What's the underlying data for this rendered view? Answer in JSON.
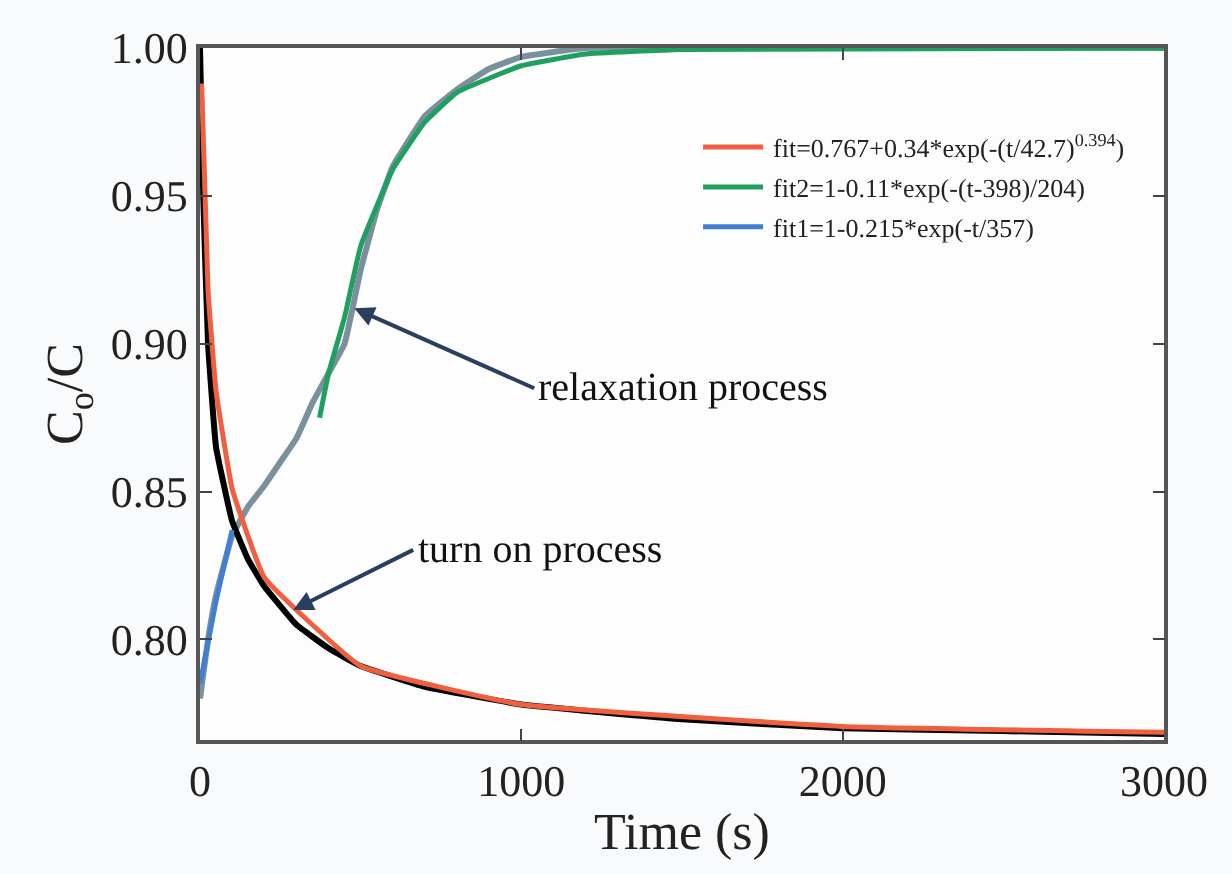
{
  "chart_data": {
    "type": "line",
    "xlabel": "Time (s)",
    "ylabel": "C$_{o}$/C",
    "xlim": [
      0,
      3000
    ],
    "xticks": [
      0,
      1000,
      2000,
      3000
    ],
    "ylim": [
      0.766,
      1.0
    ],
    "yticks": [
      {
        "value": 0.8,
        "label": "0.80"
      },
      {
        "value": 0.85,
        "label": "0.85"
      },
      {
        "value": 0.9,
        "label": "0.90"
      },
      {
        "value": 0.95,
        "label": "0.95"
      },
      {
        "value": 1.0,
        "label": "1.00"
      }
    ],
    "legend": "top right",
    "marker": "none",
    "line_style": "solid",
    "series": [
      {
        "name": "fit=0.767+0.34*exp(-(t/42.7)$^{0.394}$)",
        "color": "#f06040",
        "x": [
          5,
          25,
          50,
          100,
          200,
          500,
          1000,
          2000,
          3000
        ],
        "values": [
          0.988,
          0.918,
          0.884,
          0.851,
          0.821,
          0.791,
          0.778,
          0.7706,
          0.7686
        ]
      },
      {
        "name": "fit2=1-0.11*exp(-(t-398)/204)",
        "color": "#20a060",
        "x": [
          372,
          400,
          450,
          500,
          600,
          700,
          800,
          1000,
          1200,
          1500,
          3000
        ],
        "values": [
          0.875,
          0.89,
          0.909,
          0.933,
          0.959,
          0.975,
          0.985,
          0.994,
          0.998,
          0.9995,
          1.0
        ]
      },
      {
        "name": "fit1=1-0.215*exp(-t/357)",
        "color": "#4080d0",
        "x": [
          0,
          50,
          100
        ],
        "values": [
          0.785,
          0.813,
          0.837
        ]
      },
      {
        "color": "#7a909c",
        "x": [
          0,
          25,
          50,
          100,
          150,
          200,
          250,
          300,
          350,
          400,
          450,
          500,
          550,
          600,
          700,
          800,
          900,
          1000,
          1200,
          3000
        ],
        "values": [
          0.78,
          0.8,
          0.815,
          0.835,
          0.845,
          0.852,
          0.86,
          0.868,
          0.88,
          0.89,
          0.9,
          0.925,
          0.945,
          0.96,
          0.977,
          0.986,
          0.993,
          0.997,
          1.0,
          1.0
        ]
      },
      {
        "color": "#000000",
        "x": [
          0,
          10,
          25,
          50,
          100,
          150,
          200,
          300,
          400,
          500,
          700,
          1000,
          1500,
          2000,
          2500,
          3000
        ],
        "values": [
          1.0,
          0.95,
          0.9,
          0.865,
          0.84,
          0.827,
          0.818,
          0.805,
          0.797,
          0.791,
          0.784,
          0.778,
          0.773,
          0.77,
          0.769,
          0.768
        ]
      }
    ],
    "annotations": [
      {
        "text": "relaxation process",
        "x": 480,
        "y": 0.912
      },
      {
        "text": "turn on process",
        "x": 290,
        "y": 0.81
      }
    ]
  }
}
